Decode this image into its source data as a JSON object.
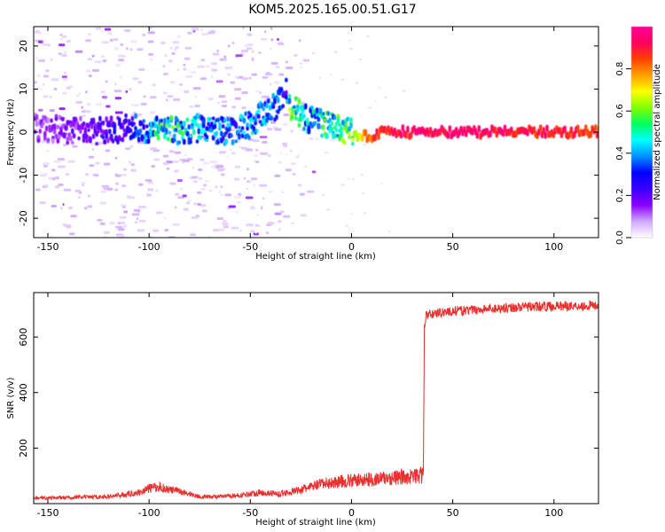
{
  "title": "KOM5.2025.165.00.51.G17",
  "chart_data": [
    {
      "type": "heatmap",
      "xlabel": "Height of straight line (km)",
      "ylabel": "Frequency (Hz)",
      "xlim": [
        -157,
        122
      ],
      "ylim": [
        -24.5,
        24.5
      ],
      "xticks": [
        -150,
        -100,
        -50,
        0,
        50,
        100
      ],
      "yticks": [
        -20,
        -10,
        0,
        10,
        20
      ],
      "colorbar": {
        "label": "Normalized spectral amplitude",
        "range": [
          0,
          1
        ],
        "ticks": [
          0.0,
          0.2,
          0.4,
          0.6,
          0.8
        ],
        "colormap": [
          "#ffffff",
          "#d0a8ff",
          "#8b00ff",
          "#3a00ff",
          "#0000ff",
          "#0090ff",
          "#00ffff",
          "#00ff60",
          "#80ff00",
          "#ffff00",
          "#ffa000",
          "#ff4000",
          "#ff0060",
          "#ff0099"
        ]
      },
      "ridge": {
        "x": [
          -155,
          -130,
          -110,
          -100,
          -95,
          -85,
          -75,
          -60,
          -50,
          -45,
          -38,
          -33,
          -31,
          -28,
          -22,
          -15,
          -8,
          0,
          3,
          8,
          15,
          25,
          50,
          75,
          100,
          122
        ],
        "y": [
          1,
          0,
          1,
          0,
          1,
          0,
          1,
          0,
          2,
          4,
          6,
          10,
          5,
          5,
          3,
          2,
          1,
          0,
          -1,
          -1,
          0,
          0,
          0,
          0,
          0,
          0
        ],
        "amplitude": [
          0.15,
          0.2,
          0.3,
          0.5,
          0.6,
          0.55,
          0.45,
          0.4,
          0.45,
          0.45,
          0.4,
          0.3,
          0.7,
          0.6,
          0.45,
          0.55,
          0.6,
          0.65,
          0.7,
          0.85,
          0.9,
          0.95,
          0.95,
          0.93,
          0.9,
          0.9
        ]
      }
    },
    {
      "type": "line",
      "xlabel": "Height of straight line (km)",
      "ylabel": "SNR (v/v)",
      "xlim": [
        -157,
        122
      ],
      "ylim": [
        0,
        760
      ],
      "xticks": [
        -150,
        -100,
        -50,
        0,
        50,
        100
      ],
      "yticks": [
        200,
        400,
        600
      ],
      "color": "#e8302e",
      "series": [
        {
          "x": [
            -157,
            -140,
            -120,
            -105,
            -100,
            -95,
            -90,
            -85,
            -75,
            -65,
            -55,
            -45,
            -35,
            -25,
            -15,
            -5,
            5,
            15,
            25,
            33,
            35.5,
            36,
            37,
            45,
            55,
            65,
            75,
            85,
            95,
            105,
            115,
            122
          ],
          "y": [
            20,
            22,
            25,
            40,
            55,
            60,
            50,
            45,
            25,
            25,
            30,
            40,
            35,
            50,
            70,
            80,
            85,
            90,
            95,
            100,
            105,
            640,
            680,
            690,
            695,
            700,
            705,
            708,
            710,
            712,
            712,
            715
          ]
        }
      ]
    }
  ]
}
